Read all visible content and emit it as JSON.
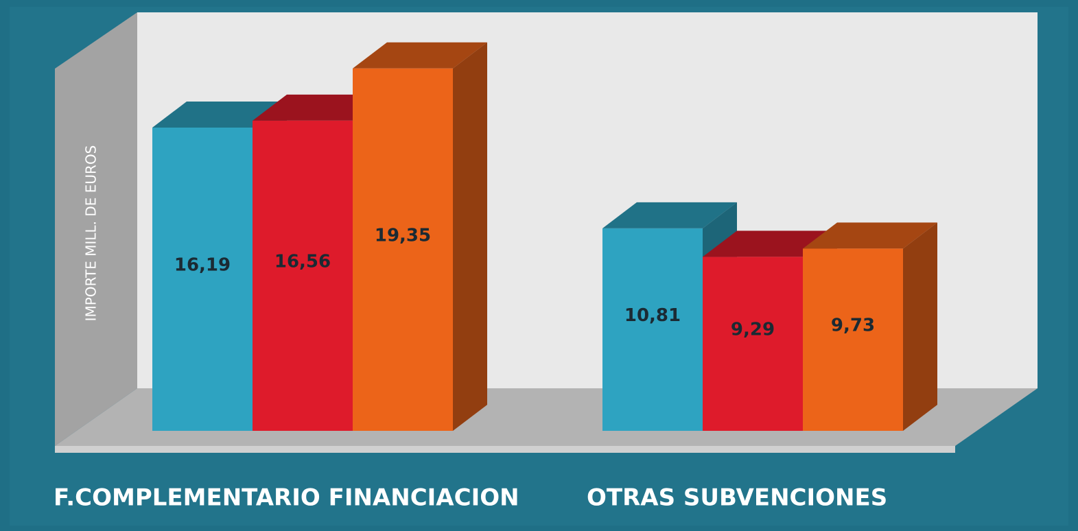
{
  "chart_data": {
    "type": "bar3d",
    "y_label": "IMPORTE MILL. DE EUROS",
    "categories": [
      "F.COMPLEMENTARIO FINANCIACION",
      "OTRAS SUBVENCIONES"
    ],
    "series": [
      {
        "color": "#2ea3c1",
        "values": [
          16.19,
          10.81
        ],
        "value_labels": [
          "16,19",
          "10,81"
        ]
      },
      {
        "color": "#de1b2b",
        "values": [
          16.56,
          9.29
        ],
        "value_labels": [
          "16,56",
          "9,29"
        ]
      },
      {
        "color": "#ec6419",
        "values": [
          19.35,
          9.73
        ],
        "value_labels": [
          "19,35",
          "9,73"
        ]
      }
    ],
    "ylim": [
      0,
      20
    ]
  }
}
